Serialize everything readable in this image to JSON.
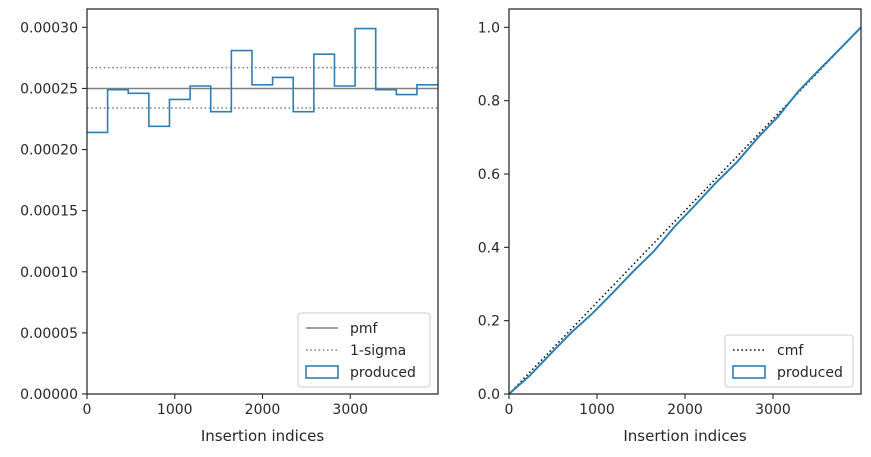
{
  "chart_data": [
    {
      "type": "step",
      "xlabel": "Insertion indices",
      "ylabel": "",
      "xlim": [
        0,
        4000
      ],
      "ylim": [
        0,
        0.000315
      ],
      "xticks": [
        "0",
        "1000",
        "2000",
        "3000"
      ],
      "xtick_values": [
        0,
        1000,
        2000,
        3000
      ],
      "yticks": [
        "0.00000",
        "0.00005",
        "0.00010",
        "0.00015",
        "0.00020",
        "0.00025",
        "0.00030"
      ],
      "ytick_values": [
        0,
        5e-05,
        0.0001,
        0.00015,
        0.0002,
        0.00025,
        0.0003
      ],
      "legend_position": "lower-right",
      "reference_lines": [
        {
          "name": "pmf",
          "y": 0.00025,
          "style": "solid",
          "color": "#808080"
        },
        {
          "name": "1-sigma",
          "y": 0.000267,
          "style": "dotted",
          "color": "#808080"
        },
        {
          "name": "1-sigma",
          "y": 0.000234,
          "style": "dotted",
          "color": "#808080"
        }
      ],
      "series": [
        {
          "name": "produced",
          "color": "#2e7fb5",
          "bin_edges": [
            0,
            235,
            470,
            705,
            940,
            1175,
            1410,
            1645,
            1880,
            2115,
            2350,
            2585,
            2820,
            3055,
            3290,
            3525,
            3760,
            4000
          ],
          "values": [
            0.000214,
            0.000249,
            0.000246,
            0.000219,
            0.000241,
            0.000252,
            0.000231,
            0.000281,
            0.000253,
            0.000259,
            0.000231,
            0.000278,
            0.000252,
            0.000299,
            0.000249,
            0.000245,
            0.000253
          ]
        }
      ],
      "legend": [
        "pmf",
        "1-sigma",
        "produced"
      ]
    },
    {
      "type": "line",
      "xlabel": "Insertion indices",
      "ylabel": "",
      "xlim": [
        0,
        4000
      ],
      "ylim": [
        0,
        1.05
      ],
      "xticks": [
        "0",
        "1000",
        "2000",
        "3000"
      ],
      "xtick_values": [
        0,
        1000,
        2000,
        3000
      ],
      "yticks": [
        "0.0",
        "0.2",
        "0.4",
        "0.6",
        "0.8",
        "1.0"
      ],
      "ytick_values": [
        0,
        0.2,
        0.4,
        0.6,
        0.8,
        1.0
      ],
      "legend_position": "lower-right",
      "series": [
        {
          "name": "cmf",
          "style": "dotted",
          "color": "#111111",
          "x": [
            0,
            4000
          ],
          "y": [
            0,
            1.0
          ]
        },
        {
          "name": "produced",
          "style": "solid",
          "color": "#2e7fb5",
          "x": [
            0,
            235,
            470,
            705,
            940,
            1175,
            1410,
            1645,
            1880,
            2115,
            2350,
            2585,
            2820,
            3055,
            3290,
            3525,
            3760,
            4000
          ],
          "y": [
            0,
            0.05,
            0.109,
            0.167,
            0.218,
            0.275,
            0.334,
            0.389,
            0.456,
            0.515,
            0.576,
            0.631,
            0.697,
            0.756,
            0.826,
            0.884,
            0.941,
            1.0
          ]
        }
      ],
      "legend": [
        "cmf",
        "produced"
      ]
    }
  ]
}
